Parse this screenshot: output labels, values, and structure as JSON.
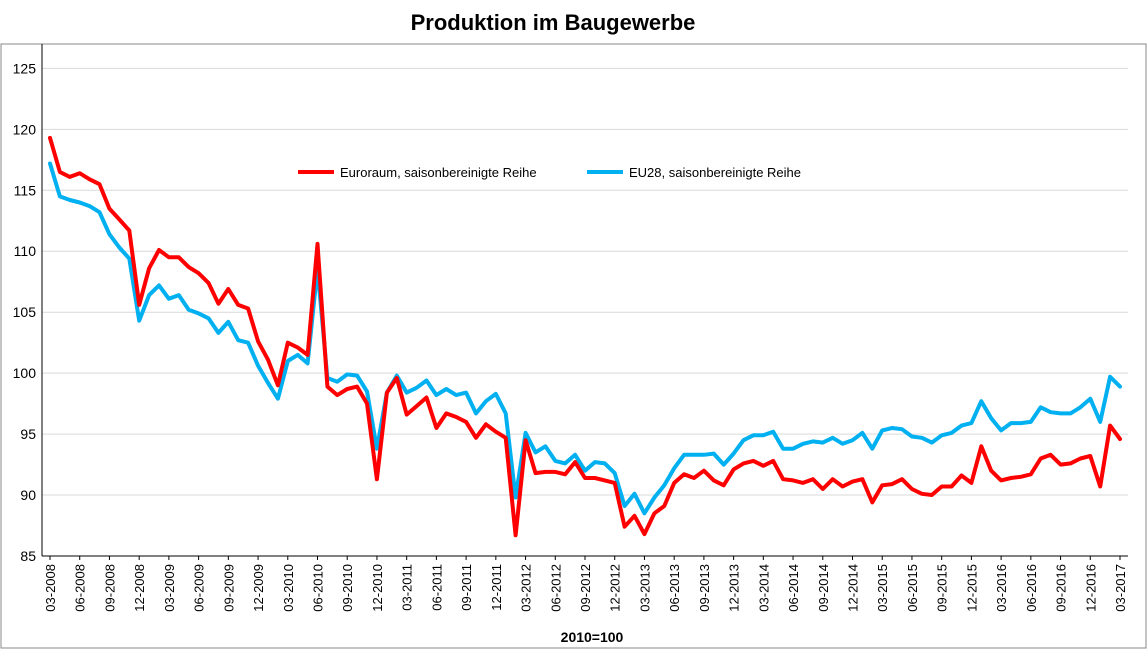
{
  "chart_data": {
    "type": "line",
    "title": "Produktion im Baugewerbe",
    "xlabel": "2010=100",
    "ylabel": "",
    "ylim": [
      85,
      127
    ],
    "yticks": [
      85,
      90,
      95,
      100,
      105,
      110,
      115,
      120,
      125
    ],
    "grid": true,
    "legend_position": "top-center",
    "x_start": "03-2008",
    "x_labels": [
      "03-2008",
      "06-2008",
      "09-2008",
      "12-2008",
      "03-2009",
      "06-2009",
      "09-2009",
      "12-2009",
      "03-2010",
      "06-2010",
      "09-2010",
      "12-2010",
      "03-2011",
      "06-2011",
      "09-2011",
      "12-2011",
      "03-2012",
      "06-2012",
      "09-2012",
      "12-2012",
      "03-2013",
      "06-2013",
      "09-2013",
      "12-2013",
      "03-2014",
      "06-2014",
      "09-2014",
      "12-2014",
      "03-2015",
      "06-2015",
      "09-2015",
      "12-2015",
      "03-2016",
      "06-2016",
      "09-2016",
      "12-2016",
      "03-2017"
    ],
    "series": [
      {
        "name": "Euroraum, saisonbereinigte Reihe",
        "color": "#ff0000",
        "values": [
          119.3,
          116.5,
          116.1,
          116.4,
          115.9,
          115.5,
          113.5,
          112.6,
          111.7,
          105.6,
          108.6,
          110.1,
          109.5,
          109.5,
          108.7,
          108.2,
          107.4,
          105.7,
          106.9,
          105.6,
          105.3,
          102.6,
          101.1,
          99.0,
          102.5,
          102.1,
          101.5,
          110.6,
          98.9,
          98.2,
          98.7,
          98.9,
          97.5,
          91.3,
          98.4,
          99.6,
          96.6,
          97.3,
          98.0,
          95.5,
          96.7,
          96.4,
          96.0,
          94.7,
          95.8,
          95.2,
          94.7,
          86.7,
          94.5,
          91.8,
          91.9,
          91.9,
          91.7,
          92.7,
          91.4,
          91.4,
          91.2,
          91.0,
          87.4,
          88.3,
          86.8,
          88.5,
          89.1,
          91.0,
          91.7,
          91.4,
          92.0,
          91.2,
          90.8,
          92.1,
          92.6,
          92.8,
          92.4,
          92.8,
          91.3,
          91.2,
          91.0,
          91.3,
          90.5,
          91.3,
          90.7,
          91.1,
          91.3,
          89.4,
          90.8,
          90.9,
          91.3,
          90.5,
          90.1,
          90.0,
          90.7,
          90.7,
          91.6,
          91.0,
          94.0,
          92.0,
          91.2,
          91.4,
          91.5,
          91.7,
          93.0,
          93.3,
          92.5,
          92.6,
          93.0,
          93.2,
          90.7,
          95.7,
          94.6
        ]
      },
      {
        "name": "EU28, saisonbereinigte Reihe",
        "color": "#00b0f0",
        "values": [
          117.2,
          114.5,
          114.2,
          114.0,
          113.7,
          113.2,
          111.4,
          110.3,
          109.4,
          104.3,
          106.4,
          107.2,
          106.1,
          106.4,
          105.2,
          104.9,
          104.5,
          103.3,
          104.2,
          102.7,
          102.5,
          100.6,
          99.2,
          97.9,
          101.0,
          101.5,
          100.8,
          108.6,
          99.6,
          99.3,
          99.9,
          99.8,
          98.5,
          93.8,
          98.4,
          99.8,
          98.4,
          98.8,
          99.4,
          98.2,
          98.7,
          98.2,
          98.4,
          96.7,
          97.7,
          98.3,
          96.7,
          89.8,
          95.1,
          93.5,
          94.0,
          92.8,
          92.6,
          93.3,
          92.0,
          92.7,
          92.6,
          91.8,
          89.1,
          90.1,
          88.5,
          89.8,
          90.8,
          92.2,
          93.3,
          93.3,
          93.3,
          93.4,
          92.5,
          93.4,
          94.5,
          94.9,
          94.9,
          95.2,
          93.8,
          93.8,
          94.2,
          94.4,
          94.3,
          94.7,
          94.2,
          94.5,
          95.1,
          93.8,
          95.3,
          95.5,
          95.4,
          94.8,
          94.7,
          94.3,
          94.9,
          95.1,
          95.7,
          95.9,
          97.7,
          96.3,
          95.3,
          95.9,
          95.9,
          96.0,
          97.2,
          96.8,
          96.7,
          96.7,
          97.2,
          97.9,
          96.0,
          99.7,
          98.9
        ]
      }
    ]
  }
}
